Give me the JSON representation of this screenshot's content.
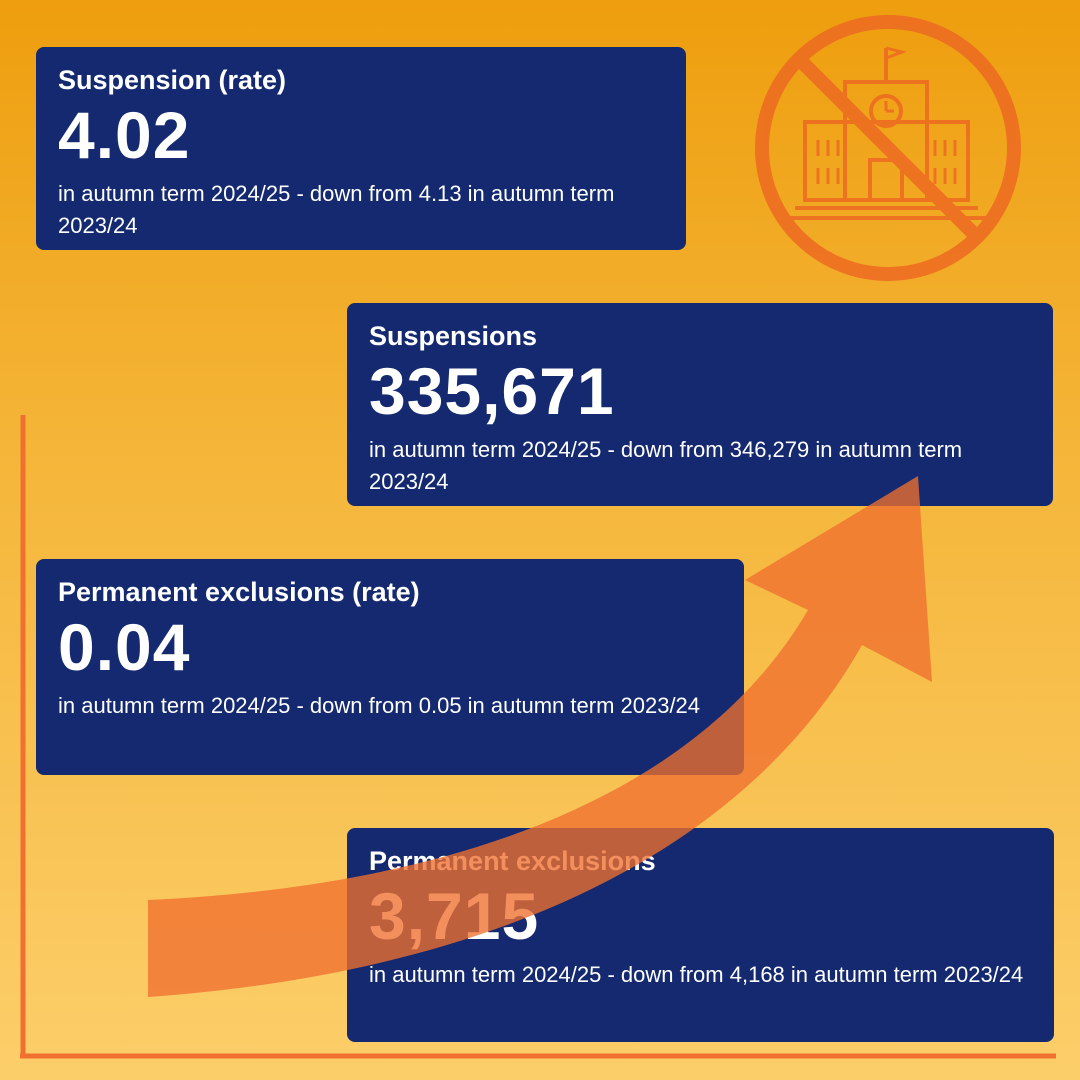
{
  "cards": [
    {
      "title": "Suspension (rate)",
      "value": "4.02",
      "description": "in autumn term 2024/25 - down from 4.13 in autumn term 2023/24"
    },
    {
      "title": "Suspensions",
      "value": "335,671",
      "description": "in autumn term 2024/25 - down from 346,279 in autumn term 2023/24"
    },
    {
      "title": "Permanent exclusions (rate)",
      "value": "0.04",
      "description": "in autumn term 2024/25 - down from 0.05 in autumn term 2023/24"
    },
    {
      "title": "Permanent exclusions",
      "value": "3,715",
      "description": "in autumn term 2024/25 - down from 4,168 in autumn term 2023/24"
    }
  ],
  "decor": {
    "no_school_icon": "no-school-icon",
    "trend_arrow": "trend-arrow-icon",
    "accent_color": "#f07030",
    "card_color": "#14296f"
  }
}
